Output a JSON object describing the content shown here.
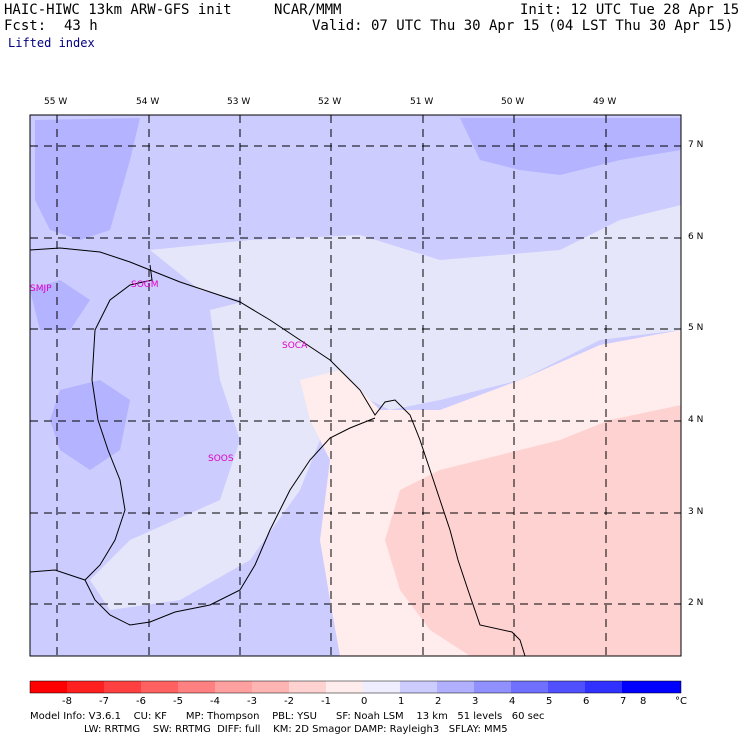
{
  "header": {
    "model": "HAIC-HIWC 13km ARW-GFS init",
    "org": "NCAR/MMM",
    "init": "Init: 12 UTC Tue 28 Apr 15",
    "fcst_label": "Fcst:",
    "fcst_value": "43 h",
    "valid": "Valid: 07 UTC Thu 30 Apr 15 (04 LST Thu 30 Apr 15)",
    "field": "Lifted index"
  },
  "map": {
    "lon_labels": [
      "55 W",
      "54 W",
      "53 W",
      "52 W",
      "51 W",
      "50 W",
      "49 W"
    ],
    "lat_labels": [
      "7 N",
      "6 N",
      "5 N",
      "4 N",
      "3 N",
      "2 N"
    ],
    "stations": [
      "SMJP",
      "SOGM",
      "SOCA",
      "SOOS"
    ],
    "colors": {
      "blue_light": "#e6e6fa",
      "blue_mid": "#ccccff",
      "blue_dark": "#b3b3ff",
      "pink_light": "#ffecec",
      "pink_mid": "#ffd2d2"
    }
  },
  "colorbar": {
    "tick_labels": [
      "-8",
      "-7",
      "-6",
      "-5",
      "-4",
      "-3",
      "-2",
      "-1",
      "0",
      "1",
      "2",
      "3",
      "4",
      "5",
      "6",
      "7",
      "8"
    ],
    "unit": "°C",
    "colors": [
      "#ff0000",
      "#ff2020",
      "#ff4040",
      "#ff6060",
      "#ff8080",
      "#ffa0a0",
      "#ffb4b4",
      "#ffd2d2",
      "#ffecec",
      "#eeeeff",
      "#ccccff",
      "#b0b0ff",
      "#9090ff",
      "#7070ff",
      "#5050ff",
      "#3030ff",
      "#0000ff"
    ]
  },
  "footer": {
    "line1": "Model Info: V3.6.1    CU: KF      MP: Thompson    PBL: YSU      SF: Noah LSM    13 km   51 levels   60 sec",
    "line2": "LW: RRTMG    SW: RRTMG  DIFF: full    KM: 2D Smagor DAMP: Rayleigh3   SFLAY: MM5"
  }
}
